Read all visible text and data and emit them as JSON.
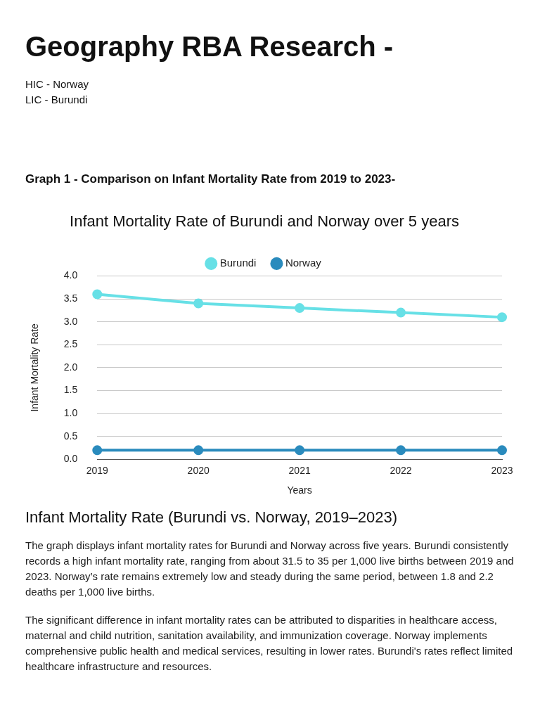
{
  "chart_data": {
    "type": "line",
    "title": "Infant Mortality Rate of Burundi and Norway over 5 years",
    "annotations": [
      "Geography RBA Research -",
      "HIC - Norway",
      "LIC - Burundi",
      "Graph 1 - Comparison on Infant Mortality Rate from 2019 to 2023-",
      "Infant Mortality Rate (Burundi vs. Norway, 2019–2023)",
      "The graph displays infant mortality rates for Burundi and Norway across five years. Burundi consistently records a high infant mortality rate, ranging from about 31.5 to 35 per 1,000 live births between 2019 and 2023. Norway’s rate remains extremely low and steady during the same period, between 1.8 and 2.2 deaths per 1,000 live births.",
      "The significant difference in infant mortality rates can be attributed to disparities in healthcare access, maternal and child nutrition, sanitation availability, and immunization coverage. Norway implements comprehensive public health and medical services, resulting in lower rates. Burundi's rates reflect limited healthcare infrastructure and resources."
    ],
    "xlabel": "Years",
    "ylabel": "Infant Mortality Rate",
    "categories": [
      "2019",
      "2020",
      "2021",
      "2022",
      "2023"
    ],
    "series": [
      {
        "name": "Burundi",
        "color": "#67e0e6",
        "values": [
          3.6,
          3.4,
          3.3,
          3.2,
          3.1
        ]
      },
      {
        "name": "Norway",
        "color": "#2a8bbd",
        "values": [
          0.2,
          0.2,
          0.2,
          0.2,
          0.2
        ]
      }
    ],
    "ylim": [
      0,
      4
    ],
    "yticks": [
      {
        "value": 0,
        "label": "0.0"
      },
      {
        "value": 0.5,
        "label": "0.5"
      },
      {
        "value": 1,
        "label": "1.0"
      },
      {
        "value": 1.5,
        "label": "1.5"
      },
      {
        "value": 2,
        "label": "2.0"
      },
      {
        "value": 2.5,
        "label": "2.5"
      },
      {
        "value": 3,
        "label": "3.0"
      },
      {
        "value": 3.5,
        "label": "3.5"
      },
      {
        "value": 4,
        "label": "4.0"
      }
    ],
    "grid": "y",
    "legend": "top",
    "marker": "circle",
    "line_style": "solid"
  }
}
